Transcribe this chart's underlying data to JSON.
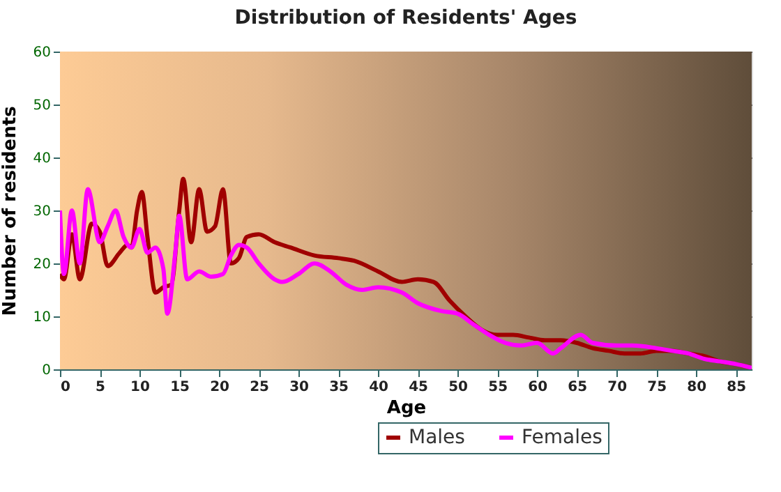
{
  "chart_data": {
    "type": "line",
    "title": "Distribution of Residents' Ages",
    "xlabel": "Age",
    "ylabel": "Number of residents",
    "xlim": [
      0,
      87
    ],
    "xticks": [
      0,
      5,
      10,
      15,
      20,
      25,
      30,
      35,
      40,
      45,
      50,
      55,
      60,
      65,
      70,
      75,
      80,
      85
    ],
    "ylim": [
      0,
      60
    ],
    "yticks": [
      0,
      10,
      20,
      30,
      40,
      50,
      60
    ],
    "grid": true,
    "legend": "bottom",
    "series": [
      {
        "name": "Males",
        "color": "#a00000",
        "x": [
          0,
          0.5,
          1.5,
          2.5,
          4,
          5,
          6,
          7.5,
          8.5,
          9,
          9.7,
          10.3,
          11,
          12,
          13,
          14,
          15,
          15.5,
          16.5,
          17.5,
          18.5,
          19.5,
          20.5,
          21.5,
          22.5,
          23.5,
          25,
          27,
          29,
          32,
          35,
          37,
          40,
          43,
          45,
          47,
          49,
          51,
          53,
          55,
          57,
          59,
          61,
          63,
          65,
          67,
          69,
          71,
          73,
          75,
          77,
          79,
          81,
          83,
          85,
          87
        ],
        "values": [
          18,
          17,
          25.5,
          17,
          27.5,
          26,
          19.5,
          22,
          23.5,
          23,
          30,
          33.5,
          25,
          14.5,
          15.5,
          16,
          30,
          36,
          24,
          34,
          26,
          27,
          34,
          20,
          21,
          25,
          25.5,
          24,
          23,
          21.5,
          21,
          20.5,
          18.5,
          16.5,
          17,
          16.5,
          13,
          10,
          7.5,
          6.5,
          6.5,
          6,
          5.5,
          5.5,
          5,
          4,
          3.5,
          3,
          3,
          3.5,
          3.5,
          3,
          2.5,
          1.5,
          1,
          0.3
        ]
      },
      {
        "name": "Females",
        "color": "#ff00ff",
        "x": [
          0,
          0.5,
          1.5,
          2.5,
          3.5,
          5,
          6,
          7,
          8,
          9,
          10,
          11,
          12,
          13,
          13.5,
          14.5,
          15,
          16,
          17.5,
          19,
          20.5,
          21.5,
          22.5,
          23.5,
          25,
          27,
          28,
          30,
          32,
          34,
          36,
          38,
          40,
          43,
          45,
          48,
          50,
          52,
          54,
          56,
          58,
          60,
          62,
          63,
          65.5,
          67,
          70,
          72,
          75,
          77,
          79,
          81,
          83,
          85,
          87
        ],
        "values": [
          30,
          18,
          30,
          20,
          34,
          24,
          27,
          30,
          25,
          23,
          26.5,
          22,
          23,
          19,
          10.5,
          22,
          29,
          17,
          18.5,
          17.5,
          18,
          21.5,
          23.5,
          23,
          20,
          17,
          16.5,
          18,
          20,
          18.5,
          16,
          15,
          15.5,
          14.5,
          12.5,
          11,
          10.5,
          8.5,
          6.5,
          5,
          4.5,
          5,
          3,
          4,
          6.5,
          5,
          4.5,
          4.5,
          4,
          3.5,
          3,
          2,
          1.5,
          1,
          0.3
        ]
      }
    ]
  }
}
